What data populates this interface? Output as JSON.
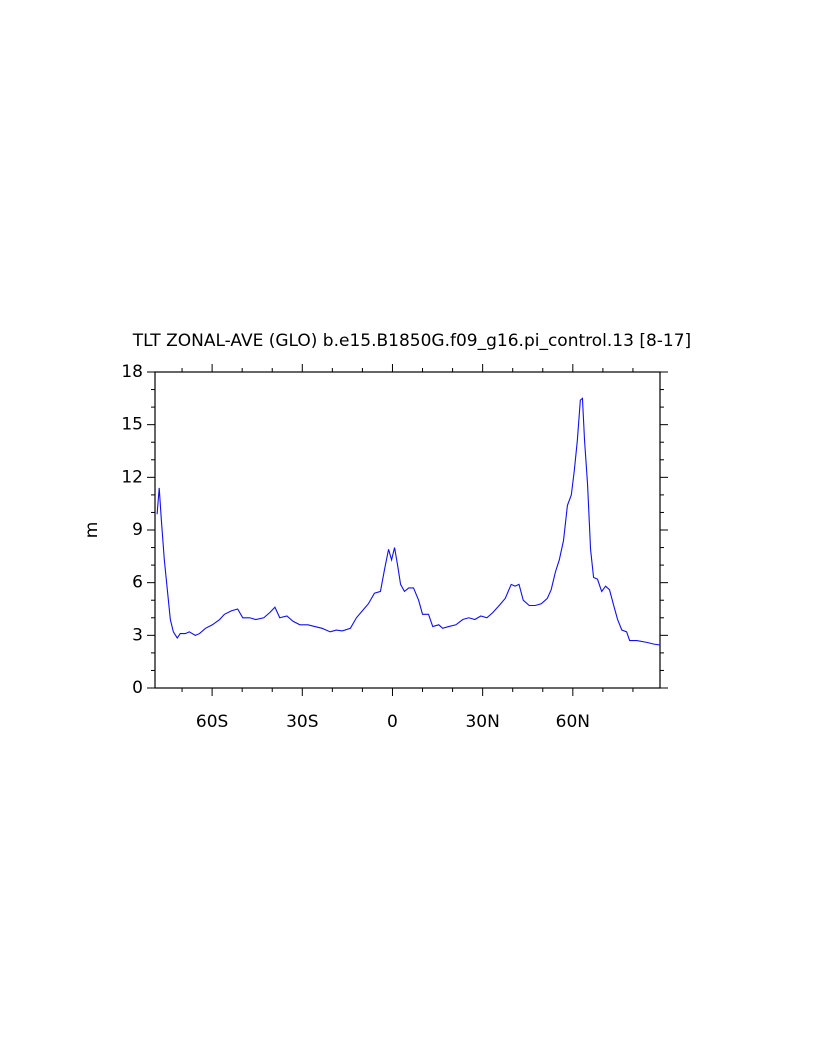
{
  "chart_data": {
    "type": "line",
    "title": "TLT ZONAL-AVE (GLO) b.e15.B1850G.f09_g16.pi_control.13 [8-17]",
    "y_label": "m",
    "x": [
      -78.3,
      -77.6,
      -76.9,
      -75.9,
      -74.9,
      -73.9,
      -72.9,
      -71.6,
      -70.6,
      -68.9,
      -67.6,
      -65.6,
      -64.2,
      -62.2,
      -59.9,
      -57.5,
      -55.9,
      -53.5,
      -51.5,
      -49.8,
      -47.5,
      -45.5,
      -42.8,
      -40.8,
      -39.1,
      -37.5,
      -35.1,
      -33.1,
      -30.8,
      -28.1,
      -25.8,
      -23.4,
      -20.7,
      -18.7,
      -16.7,
      -14.0,
      -12.0,
      -10.0,
      -8.0,
      -6.0,
      -4.0,
      -2.7,
      -1.3,
      -0.3,
      0.7,
      1.7,
      2.7,
      4.0,
      5.4,
      7.0,
      8.7,
      10.0,
      12.0,
      13.4,
      15.4,
      16.7,
      18.7,
      21.1,
      23.4,
      25.4,
      27.4,
      29.4,
      31.4,
      33.4,
      35.5,
      37.5,
      39.5,
      40.8,
      42.1,
      43.5,
      45.5,
      47.5,
      49.5,
      51.5,
      52.8,
      54.2,
      55.5,
      56.9,
      58.2,
      59.5,
      60.5,
      61.5,
      62.5,
      63.2,
      63.9,
      64.9,
      65.9,
      66.9,
      68.2,
      69.6,
      70.9,
      72.2,
      73.6,
      74.9,
      76.3,
      77.9,
      78.9,
      81.3,
      84.6,
      87.0,
      89.0
    ],
    "series": [
      {
        "name": "TLT",
        "color": "#1010ee",
        "values": [
          9.9,
          11.4,
          9.6,
          7.3,
          5.6,
          3.9,
          3.2,
          2.85,
          3.1,
          3.1,
          3.2,
          3.0,
          3.1,
          3.4,
          3.6,
          3.9,
          4.2,
          4.4,
          4.5,
          4.0,
          4.0,
          3.9,
          4.0,
          4.3,
          4.6,
          4.0,
          4.1,
          3.8,
          3.6,
          3.6,
          3.5,
          3.4,
          3.2,
          3.3,
          3.25,
          3.4,
          4.0,
          4.4,
          4.8,
          5.4,
          5.5,
          6.7,
          7.9,
          7.3,
          8.0,
          7.0,
          5.9,
          5.5,
          5.7,
          5.7,
          5.0,
          4.2,
          4.2,
          3.5,
          3.6,
          3.4,
          3.5,
          3.6,
          3.9,
          4.0,
          3.9,
          4.1,
          4.0,
          4.3,
          4.7,
          5.1,
          5.9,
          5.8,
          5.9,
          5.0,
          4.7,
          4.7,
          4.8,
          5.1,
          5.6,
          6.6,
          7.3,
          8.4,
          10.4,
          11.0,
          12.4,
          14.1,
          16.4,
          16.5,
          14.1,
          11.6,
          7.9,
          6.3,
          6.2,
          5.5,
          5.8,
          5.6,
          4.7,
          3.9,
          3.3,
          3.2,
          2.7,
          2.7,
          2.6,
          2.5,
          2.45
        ]
      }
    ],
    "xlim": [
      -79,
      89
    ],
    "xticks": [
      {
        "value": -60,
        "label": "60S"
      },
      {
        "value": -30,
        "label": "30S"
      },
      0,
      {
        "value": 30,
        "label": "30N"
      },
      {
        "value": 60,
        "label": "60N"
      }
    ],
    "ylim": [
      0,
      18
    ],
    "yticks": [
      0,
      3,
      6,
      9,
      12,
      15,
      18
    ]
  }
}
